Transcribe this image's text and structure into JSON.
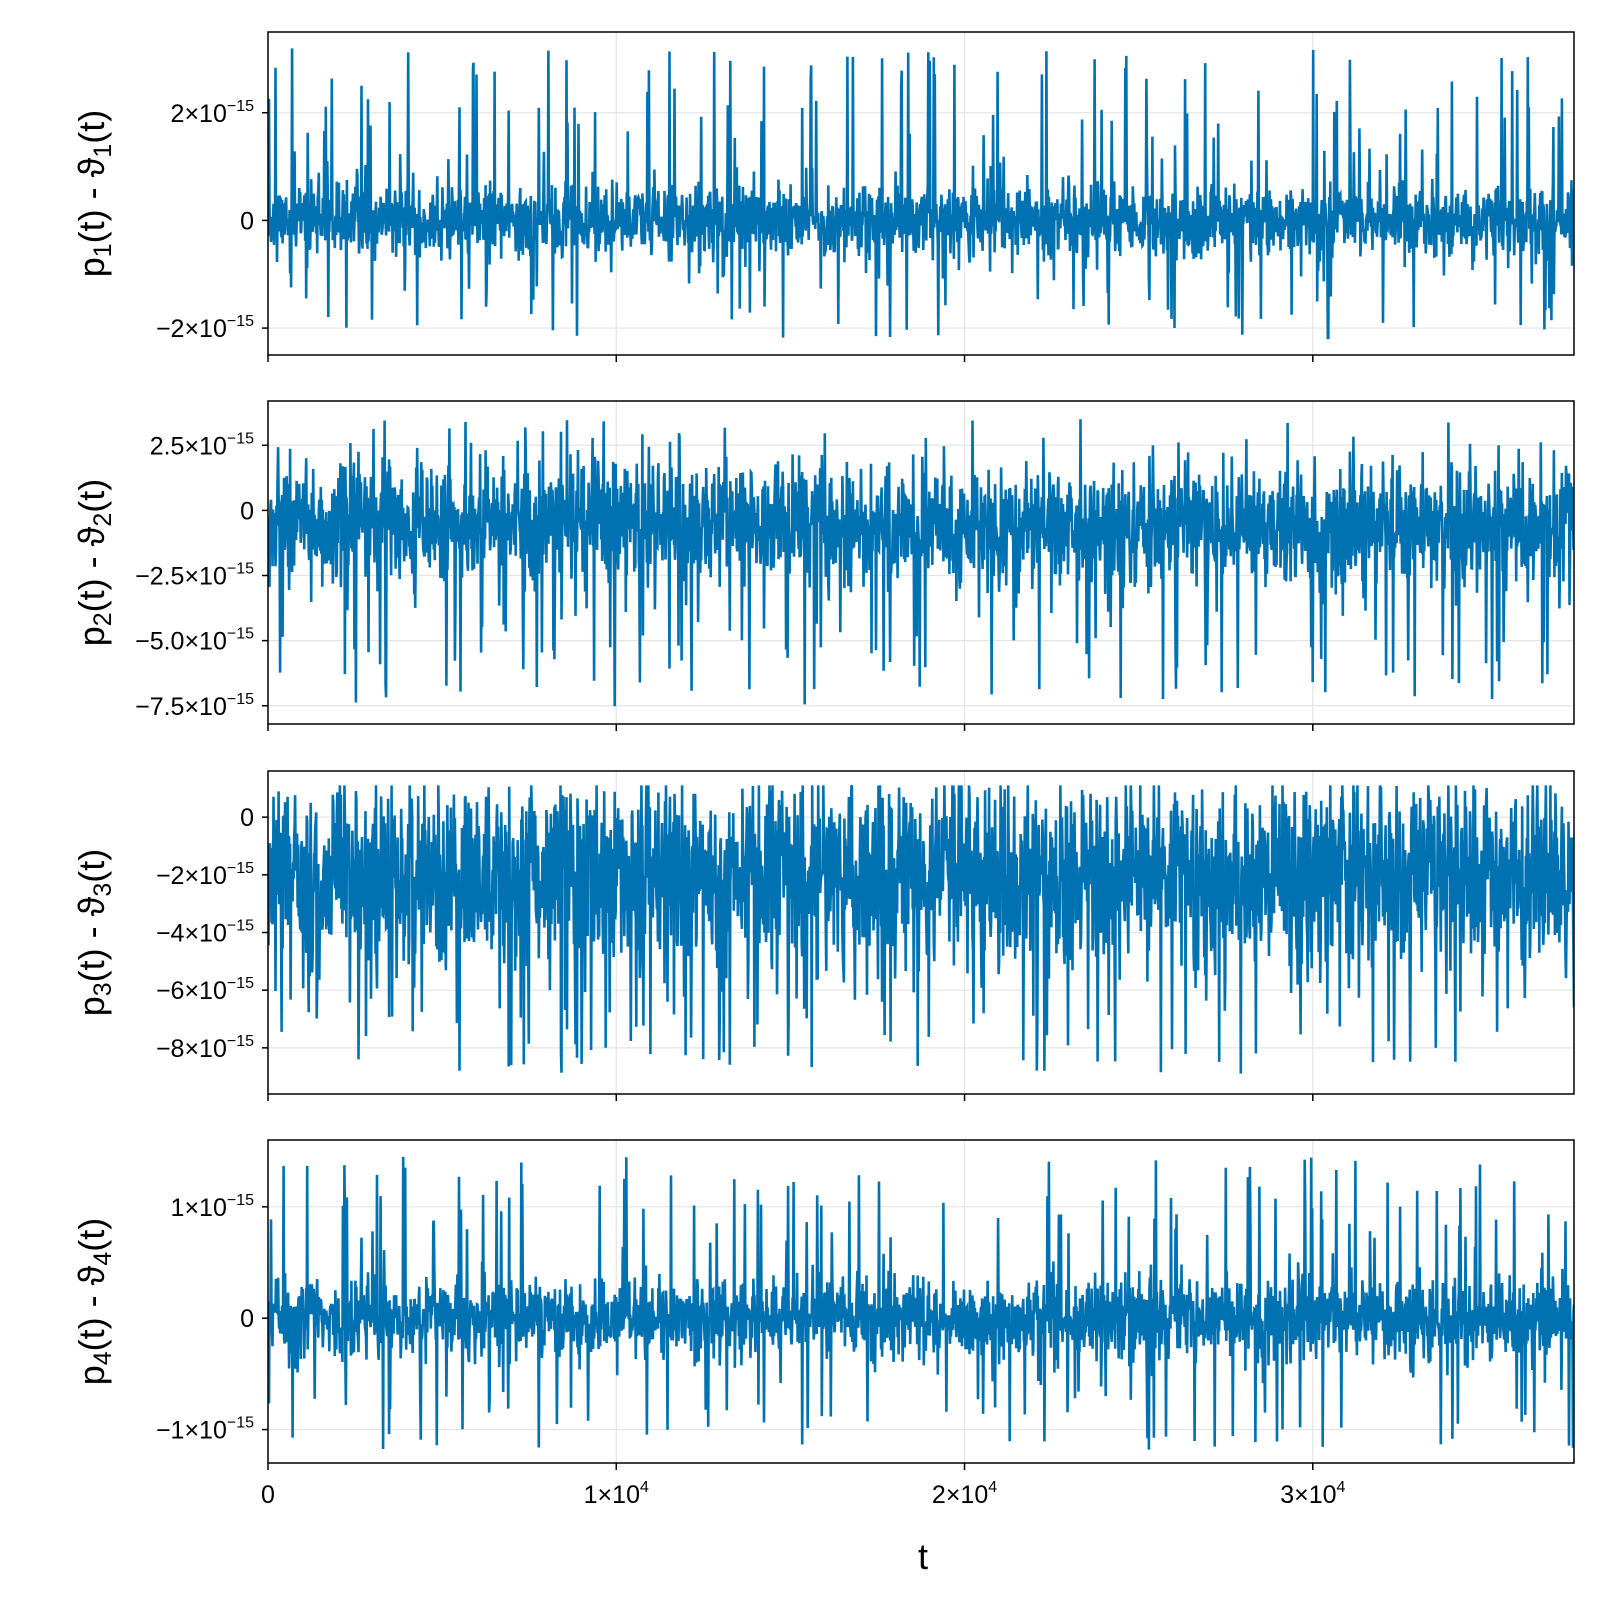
{
  "chart_data": [
    {
      "type": "line",
      "panel": 1,
      "ylabel_parts": [
        {
          "t": "p"
        },
        {
          "t": "1",
          "sub": true
        },
        {
          "t": "(t) - ϑ"
        },
        {
          "t": "1",
          "sub": true
        },
        {
          "t": "(t)"
        }
      ],
      "ylabel": "p₁(t) - ϑ₁(t)",
      "x_range": [
        0,
        37500
      ],
      "ylim": [
        -2.5e-15,
        3.5e-15
      ],
      "y_ticks": [
        {
          "value": -2e-15,
          "mant": "−2×10",
          "exp": "−15"
        },
        {
          "value": 0,
          "mant": "0",
          "exp": ""
        },
        {
          "value": 2e-15,
          "mant": "2×10",
          "exp": "−15"
        }
      ],
      "grid": true,
      "noise": {
        "core_sigma": 3.3e-16,
        "spike_rate": 0.09,
        "spike_low": -2.2e-15,
        "spike_high": 3.2e-15,
        "seed": 11
      },
      "color": "#0072b2"
    },
    {
      "type": "line",
      "panel": 2,
      "ylabel_parts": [
        {
          "t": "p"
        },
        {
          "t": "2",
          "sub": true
        },
        {
          "t": "(t) - ϑ"
        },
        {
          "t": "2",
          "sub": true
        },
        {
          "t": "(t)"
        }
      ],
      "ylabel": "p₂(t) - ϑ₂(t)",
      "x_range": [
        0,
        37500
      ],
      "ylim": [
        -8.2e-15,
        4.2e-15
      ],
      "y_ticks": [
        {
          "value": -7.5e-15,
          "mant": "−7.5×10",
          "exp": "−15"
        },
        {
          "value": -5e-15,
          "mant": "−5.0×10",
          "exp": "−15"
        },
        {
          "value": -2.5e-15,
          "mant": "−2.5×10",
          "exp": "−15"
        },
        {
          "value": 0,
          "mant": "0",
          "exp": ""
        },
        {
          "value": 2.5e-15,
          "mant": "2.5×10",
          "exp": "−15"
        }
      ],
      "grid": true,
      "noise": {
        "center": -6e-16,
        "core_sigma": 1.1e-15,
        "spike_rate": 0.08,
        "spike_low": -7.6e-15,
        "spike_high": 3.5e-15,
        "seed": 23
      },
      "color": "#0072b2"
    },
    {
      "type": "line",
      "panel": 3,
      "ylabel_parts": [
        {
          "t": "p"
        },
        {
          "t": "3",
          "sub": true
        },
        {
          "t": "(t) - ϑ"
        },
        {
          "t": "3",
          "sub": true
        },
        {
          "t": "(t)"
        }
      ],
      "ylabel": "p₃(t) - ϑ₃(t)",
      "x_range": [
        0,
        37500
      ],
      "ylim": [
        -9.6e-15,
        1.6e-15
      ],
      "y_ticks": [
        {
          "value": -8e-15,
          "mant": "−8×10",
          "exp": "−15"
        },
        {
          "value": -6e-15,
          "mant": "−6×10",
          "exp": "−15"
        },
        {
          "value": -4e-15,
          "mant": "−4×10",
          "exp": "−15"
        },
        {
          "value": -2e-15,
          "mant": "−2×10",
          "exp": "−15"
        },
        {
          "value": 0,
          "mant": "0",
          "exp": ""
        }
      ],
      "grid": true,
      "noise": {
        "center": -2e-15,
        "core_sigma": 1.6e-15,
        "spike_rate": 0.1,
        "spike_low": -8.9e-15,
        "spike_high": 1.1e-15,
        "seed": 37
      },
      "color": "#0072b2"
    },
    {
      "type": "line",
      "panel": 4,
      "ylabel_parts": [
        {
          "t": "p"
        },
        {
          "t": "4",
          "sub": true
        },
        {
          "t": "(t) - ϑ"
        },
        {
          "t": "4",
          "sub": true
        },
        {
          "t": "(t)"
        }
      ],
      "ylabel": "p₄(t) - ϑ₄(t)",
      "x_range": [
        0,
        37500
      ],
      "ylim": [
        -1.3e-15,
        1.6e-15
      ],
      "y_ticks": [
        {
          "value": -1e-15,
          "mant": "−1×10",
          "exp": "−15"
        },
        {
          "value": 0,
          "mant": "0",
          "exp": ""
        },
        {
          "value": 1e-15,
          "mant": "1×10",
          "exp": "−15"
        }
      ],
      "grid": true,
      "noise": {
        "core_sigma": 1.7e-16,
        "spike_rate": 0.09,
        "spike_low": -1.18e-15,
        "spike_high": 1.45e-15,
        "seed": 53
      },
      "color": "#0072b2"
    }
  ],
  "shared_x": {
    "xlabel": "t",
    "x_ticks": [
      {
        "value": 0,
        "mant": "0",
        "exp": ""
      },
      {
        "value": 10000,
        "mant": "1×10",
        "exp": "4"
      },
      {
        "value": 20000,
        "mant": "2×10",
        "exp": "4"
      },
      {
        "value": 30000,
        "mant": "3×10",
        "exp": "4"
      }
    ]
  }
}
